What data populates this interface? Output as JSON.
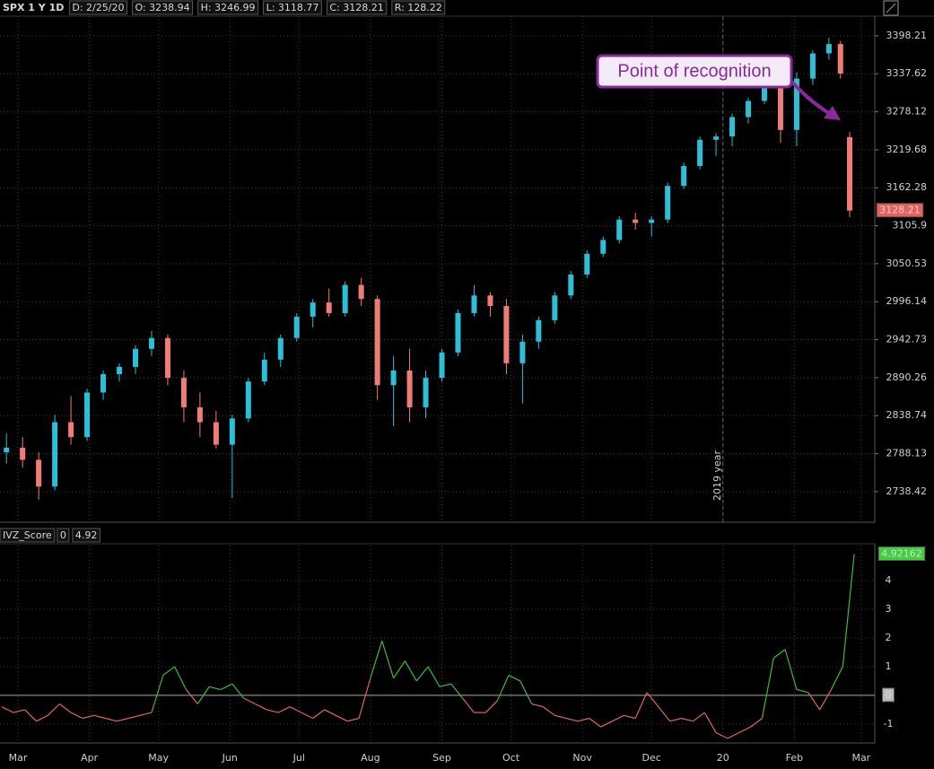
{
  "header": {
    "symbol": "SPX 1 Y 1D",
    "fields": [
      "D: 2/25/20",
      "O: 3238.94",
      "H: 3246.99",
      "L: 3118.77",
      "C: 3128.21",
      "R: 128.22"
    ]
  },
  "chart_data": [
    {
      "type": "candlestick",
      "log_scale": true,
      "grid": true,
      "up_color": "#2bbfd8",
      "down_color": "#f07c78",
      "x": [
        -5,
        2,
        9,
        16,
        23,
        30,
        37,
        44,
        51,
        58,
        65,
        72,
        79,
        86,
        93,
        100,
        107,
        114,
        121,
        128,
        135,
        142,
        149,
        156,
        163,
        170,
        177,
        184,
        191,
        198,
        205,
        212,
        219,
        226,
        233,
        240,
        247,
        254,
        261,
        268,
        275,
        282,
        289,
        296,
        303,
        310,
        317,
        324,
        331,
        338,
        345,
        352,
        357,
        361
      ],
      "open": [
        2790,
        2796,
        2780,
        2745,
        2830,
        2810,
        2870,
        2895,
        2905,
        2930,
        2945,
        2890,
        2850,
        2830,
        2800,
        2835,
        2885,
        2915,
        2945,
        2975,
        2995,
        2980,
        3020,
        3000,
        2880,
        2900,
        2850,
        2890,
        2925,
        2980,
        3005,
        2990,
        2910,
        2940,
        2970,
        3005,
        3035,
        3065,
        3085,
        3115,
        3110,
        3115,
        3165,
        3195,
        3235,
        3240,
        3270,
        3295,
        3330,
        3250,
        3330,
        3370,
        3385,
        3238.94
      ],
      "high": [
        2815,
        2810,
        2790,
        2840,
        2865,
        2875,
        2900,
        2910,
        2935,
        2955,
        2950,
        2900,
        2870,
        2845,
        2840,
        2890,
        2925,
        2950,
        2980,
        3000,
        3015,
        3025,
        3030,
        3005,
        2920,
        2930,
        2900,
        2930,
        2985,
        3020,
        3010,
        3000,
        2950,
        2975,
        3010,
        3040,
        3070,
        3090,
        3120,
        3125,
        3120,
        3170,
        3200,
        3240,
        3245,
        3275,
        3300,
        3335,
        3335,
        3340,
        3375,
        3395,
        3390,
        3246.99
      ],
      "low": [
        2775,
        2770,
        2728,
        2740,
        2800,
        2805,
        2860,
        2885,
        2895,
        2920,
        2880,
        2830,
        2810,
        2795,
        2730,
        2830,
        2880,
        2905,
        2940,
        2960,
        2975,
        2975,
        2990,
        2860,
        2825,
        2830,
        2835,
        2885,
        2920,
        2975,
        2975,
        2895,
        2855,
        2930,
        2965,
        3000,
        3030,
        3060,
        3080,
        3100,
        3090,
        3110,
        3160,
        3190,
        3210,
        3225,
        3260,
        3290,
        3230,
        3225,
        3320,
        3360,
        3330,
        3118.77
      ],
      "close": [
        2796,
        2780,
        2745,
        2830,
        2810,
        2870,
        2895,
        2905,
        2930,
        2945,
        2890,
        2850,
        2830,
        2800,
        2835,
        2885,
        2915,
        2945,
        2975,
        2995,
        2980,
        3020,
        3000,
        2880,
        2900,
        2850,
        2890,
        2925,
        2980,
        3005,
        2990,
        2910,
        2940,
        2970,
        3005,
        3035,
        3065,
        3085,
        3115,
        3110,
        3115,
        3165,
        3195,
        3235,
        3240,
        3270,
        3295,
        3330,
        3250,
        3330,
        3370,
        3385,
        3338,
        3128.21
      ],
      "xlim": [
        -7.8,
        371.9
      ],
      "ylim": [
        2699,
        3430
      ],
      "yticks": [
        3398.21,
        3337.62,
        3278.12,
        3219.68,
        3162.28,
        3105.9,
        3050.53,
        2996.14,
        2942.73,
        2890.26,
        2838.74,
        2788.13,
        2738.42
      ],
      "annotations": [
        "2019 year",
        "Point of recognition"
      ]
    },
    {
      "type": "line",
      "grid": true,
      "study": "IVZ_Score",
      "study_params": [
        "0",
        "4.92"
      ],
      "pos_color": "#3fb83f",
      "neg_color": "#e0675f",
      "x": [
        -7,
        -2,
        3,
        8,
        13,
        18,
        23,
        28,
        33,
        38,
        43,
        48,
        53,
        58,
        63,
        68,
        73,
        78,
        83,
        88,
        93,
        98,
        103,
        108,
        113,
        118,
        123,
        128,
        133,
        138,
        143,
        148,
        153,
        158,
        163,
        168,
        173,
        178,
        183,
        188,
        193,
        198,
        203,
        208,
        213,
        218,
        223,
        228,
        233,
        238,
        243,
        248,
        253,
        258,
        263,
        268,
        273,
        278,
        283,
        288,
        293,
        298,
        303,
        308,
        313,
        318,
        323,
        328,
        333,
        338,
        343,
        348,
        353,
        358,
        363
      ],
      "values": [
        -0.4,
        -0.6,
        -0.5,
        -0.9,
        -0.7,
        -0.3,
        -0.6,
        -0.8,
        -0.7,
        -0.8,
        -0.9,
        -0.8,
        -0.7,
        -0.6,
        0.7,
        1.0,
        0.2,
        -0.3,
        0.3,
        0.2,
        0.4,
        -0.1,
        -0.3,
        -0.5,
        -0.6,
        -0.4,
        -0.6,
        -0.8,
        -0.5,
        -0.7,
        -0.9,
        -0.8,
        0.6,
        1.9,
        0.6,
        1.2,
        0.5,
        1.0,
        0.3,
        0.4,
        -0.1,
        -0.6,
        -0.6,
        -0.2,
        0.7,
        0.5,
        -0.3,
        -0.4,
        -0.7,
        -0.8,
        -0.9,
        -0.8,
        -1.1,
        -0.9,
        -0.7,
        -0.8,
        0.1,
        -0.4,
        -0.9,
        -0.8,
        -0.9,
        -0.6,
        -1.3,
        -1.5,
        -1.3,
        -1.1,
        -0.8,
        1.3,
        1.6,
        0.2,
        0.1,
        -0.5,
        0.2,
        1.0,
        4.92162
      ],
      "xlim": [
        -7.8,
        371.9
      ],
      "ylim": [
        -1.66,
        5.22
      ],
      "yticks": [
        -1,
        0,
        1,
        2,
        3,
        4
      ],
      "xticks": [
        {
          "value": 0,
          "label": "Mar"
        },
        {
          "value": 31,
          "label": "Apr"
        },
        {
          "value": 61,
          "label": "May"
        },
        {
          "value": 92,
          "label": "Jun"
        },
        {
          "value": 122,
          "label": "Jul"
        },
        {
          "value": 153,
          "label": "Aug"
        },
        {
          "value": 184,
          "label": "Sep"
        },
        {
          "value": 214,
          "label": "Oct"
        },
        {
          "value": 245,
          "label": "Nov"
        },
        {
          "value": 275,
          "label": "Dec"
        },
        {
          "value": 306,
          "label": "20"
        },
        {
          "value": 337,
          "label": "Feb"
        },
        {
          "value": 366,
          "label": "Mar"
        }
      ]
    }
  ]
}
